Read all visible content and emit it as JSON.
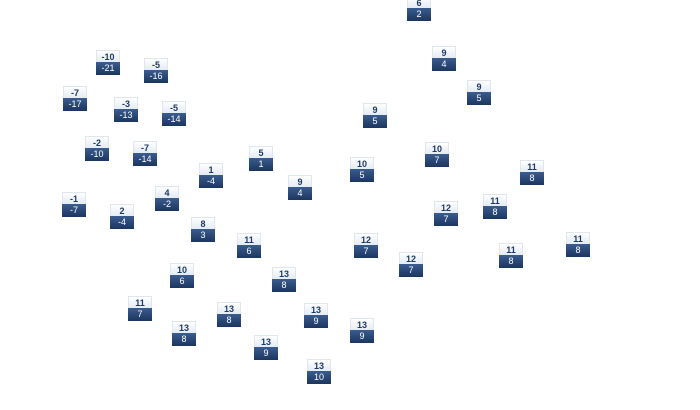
{
  "tiles": [
    {
      "top": 6,
      "bottom": 2
    },
    {
      "top": -10,
      "bottom": -21
    },
    {
      "top": -5,
      "bottom": -16
    },
    {
      "top": 9,
      "bottom": 4
    },
    {
      "top": 9,
      "bottom": 5
    },
    {
      "top": -7,
      "bottom": -17
    },
    {
      "top": -3,
      "bottom": -13
    },
    {
      "top": -5,
      "bottom": -14
    },
    {
      "top": 9,
      "bottom": 5
    },
    {
      "top": -2,
      "bottom": -10
    },
    {
      "top": -7,
      "bottom": -14
    },
    {
      "top": 10,
      "bottom": 7
    },
    {
      "top": 5,
      "bottom": 1
    },
    {
      "top": 10,
      "bottom": 5
    },
    {
      "top": 1,
      "bottom": -4
    },
    {
      "top": 11,
      "bottom": 8
    },
    {
      "top": 9,
      "bottom": 4
    },
    {
      "top": 4,
      "bottom": -2
    },
    {
      "top": -1,
      "bottom": -7
    },
    {
      "top": 11,
      "bottom": 8
    },
    {
      "top": 12,
      "bottom": 7
    },
    {
      "top": 2,
      "bottom": -4
    },
    {
      "top": 8,
      "bottom": 3
    },
    {
      "top": 11,
      "bottom": 6
    },
    {
      "top": 12,
      "bottom": 7
    },
    {
      "top": 11,
      "bottom": 8
    },
    {
      "top": 11,
      "bottom": 8
    },
    {
      "top": 12,
      "bottom": 7
    },
    {
      "top": 10,
      "bottom": 6
    },
    {
      "top": 13,
      "bottom": 8
    },
    {
      "top": 11,
      "bottom": 7
    },
    {
      "top": 13,
      "bottom": 8
    },
    {
      "top": 13,
      "bottom": 9
    },
    {
      "top": 13,
      "bottom": 9
    },
    {
      "top": 13,
      "bottom": 8
    },
    {
      "top": 13,
      "bottom": 9
    },
    {
      "top": 13,
      "bottom": 10
    }
  ]
}
